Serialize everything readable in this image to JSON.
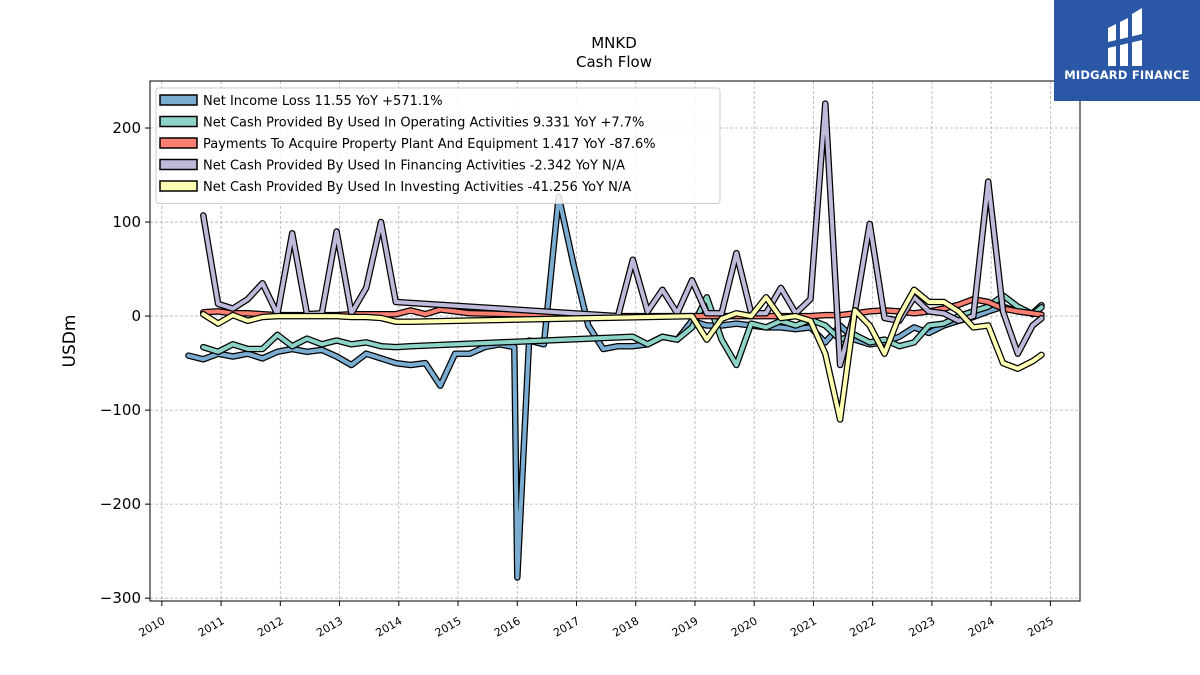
{
  "brand": {
    "name": "MIDGARD FINANCE",
    "bg": "#2b57a7"
  },
  "chart_data": {
    "type": "line",
    "title": "MNKD",
    "subtitle": "Cash Flow",
    "ylabel": "USDm",
    "xlabel": "",
    "xlim": [
      2009.8,
      2025.5
    ],
    "ylim": [
      -303,
      250
    ],
    "x_ticks": [
      2010,
      2011,
      2012,
      2013,
      2014,
      2015,
      2016,
      2017,
      2018,
      2019,
      2020,
      2021,
      2022,
      2023,
      2024,
      2025
    ],
    "y_ticks": [
      -300,
      -200,
      -100,
      0,
      100,
      200
    ],
    "y_tick_labels": [
      "−300",
      "−200",
      "−100",
      "0",
      "100",
      "200"
    ],
    "grid": true,
    "legend_position": "upper-left",
    "series": [
      {
        "name": "Net Income Loss  11.55 YoY +571.1%",
        "color": "#7aadd1",
        "points": [
          [
            2010.45,
            -42
          ],
          [
            2010.7,
            -46
          ],
          [
            2010.95,
            -40
          ],
          [
            2011.2,
            -43
          ],
          [
            2011.45,
            -40
          ],
          [
            2011.7,
            -45
          ],
          [
            2011.95,
            -38
          ],
          [
            2012.2,
            -35
          ],
          [
            2012.45,
            -38
          ],
          [
            2012.7,
            -36
          ],
          [
            2012.95,
            -43
          ],
          [
            2013.2,
            -52
          ],
          [
            2013.45,
            -40
          ],
          [
            2013.7,
            -45
          ],
          [
            2013.95,
            -50
          ],
          [
            2014.2,
            -52
          ],
          [
            2014.45,
            -50
          ],
          [
            2014.7,
            -74
          ],
          [
            2014.95,
            -40
          ],
          [
            2015.2,
            -40
          ],
          [
            2015.45,
            -33
          ],
          [
            2015.7,
            -30
          ],
          [
            2015.95,
            -33
          ],
          [
            2016.0,
            -278
          ],
          [
            2016.2,
            -26
          ],
          [
            2016.45,
            -30
          ],
          [
            2016.7,
            127
          ],
          [
            2016.95,
            55
          ],
          [
            2017.2,
            -10
          ],
          [
            2017.45,
            -35
          ],
          [
            2017.7,
            -32
          ],
          [
            2017.95,
            -32
          ],
          [
            2018.2,
            -30
          ],
          [
            2018.45,
            -22
          ],
          [
            2018.7,
            -25
          ],
          [
            2018.95,
            -5
          ],
          [
            2019.2,
            -10
          ],
          [
            2019.45,
            -10
          ],
          [
            2019.7,
            -8
          ],
          [
            2019.95,
            -10
          ],
          [
            2020.2,
            -12
          ],
          [
            2020.45,
            -12
          ],
          [
            2020.7,
            -14
          ],
          [
            2020.95,
            -12
          ],
          [
            2021.2,
            -28
          ],
          [
            2021.45,
            -10
          ],
          [
            2021.7,
            -25
          ],
          [
            2021.95,
            -30
          ],
          [
            2022.2,
            -28
          ],
          [
            2022.45,
            -22
          ],
          [
            2022.7,
            -12
          ],
          [
            2022.95,
            -18
          ],
          [
            2023.2,
            -10
          ],
          [
            2023.45,
            -5
          ],
          [
            2023.7,
            -1
          ],
          [
            2023.95,
            5
          ],
          [
            2024.2,
            10
          ],
          [
            2024.45,
            5
          ],
          [
            2024.7,
            3
          ],
          [
            2024.85,
            11.55
          ]
        ]
      },
      {
        "name": "Net Cash Provided By Used In Operating Activities  9.331 YoY +7.7%",
        "color": "#8dd3c7",
        "points": [
          [
            2010.7,
            -33
          ],
          [
            2010.95,
            -38
          ],
          [
            2011.2,
            -30
          ],
          [
            2011.45,
            -35
          ],
          [
            2011.7,
            -35
          ],
          [
            2011.95,
            -20
          ],
          [
            2012.2,
            -32
          ],
          [
            2012.45,
            -24
          ],
          [
            2012.7,
            -30
          ],
          [
            2012.95,
            -26
          ],
          [
            2013.2,
            -30
          ],
          [
            2013.45,
            -28
          ],
          [
            2013.7,
            -32
          ],
          [
            2013.95,
            -33
          ],
          [
            2014.2,
            -32
          ],
          [
            2017.95,
            -22
          ],
          [
            2018.2,
            -30
          ],
          [
            2018.45,
            -22
          ],
          [
            2018.7,
            -25
          ],
          [
            2018.95,
            -12
          ],
          [
            2019.2,
            20
          ],
          [
            2019.45,
            -25
          ],
          [
            2019.7,
            -52
          ],
          [
            2019.95,
            -8
          ],
          [
            2020.2,
            -12
          ],
          [
            2020.45,
            -5
          ],
          [
            2020.7,
            -10
          ],
          [
            2020.95,
            -4
          ],
          [
            2021.2,
            -10
          ],
          [
            2021.45,
            -25
          ],
          [
            2021.7,
            -20
          ],
          [
            2021.95,
            -28
          ],
          [
            2022.2,
            -25
          ],
          [
            2022.45,
            -32
          ],
          [
            2022.7,
            -28
          ],
          [
            2022.95,
            -10
          ],
          [
            2023.2,
            -8
          ],
          [
            2023.45,
            0
          ],
          [
            2023.7,
            5
          ],
          [
            2023.95,
            10
          ],
          [
            2024.2,
            22
          ],
          [
            2024.45,
            10
          ],
          [
            2024.7,
            2
          ],
          [
            2024.85,
            9.331
          ]
        ]
      },
      {
        "name": "Payments To Acquire Property Plant And Equipment  1.417 YoY -87.6%",
        "color": "#fb8072",
        "points": [
          [
            2010.7,
            4
          ],
          [
            2010.95,
            5
          ],
          [
            2011.2,
            3
          ],
          [
            2011.45,
            3
          ],
          [
            2011.7,
            2
          ],
          [
            2011.95,
            1
          ],
          [
            2012.2,
            1
          ],
          [
            2012.45,
            1
          ],
          [
            2012.7,
            1
          ],
          [
            2012.95,
            1
          ],
          [
            2013.2,
            2
          ],
          [
            2013.45,
            2
          ],
          [
            2013.7,
            2
          ],
          [
            2013.95,
            2
          ],
          [
            2014.2,
            6
          ],
          [
            2014.45,
            2
          ],
          [
            2014.7,
            7
          ],
          [
            2014.95,
            5
          ],
          [
            2015.2,
            3
          ],
          [
            2016.95,
            1
          ],
          [
            2017.45,
            0
          ],
          [
            2018.95,
            0
          ],
          [
            2019.2,
            0
          ],
          [
            2019.45,
            0
          ],
          [
            2019.7,
            0
          ],
          [
            2019.95,
            0
          ],
          [
            2020.2,
            0
          ],
          [
            2020.45,
            0
          ],
          [
            2020.7,
            0
          ],
          [
            2020.95,
            0
          ],
          [
            2021.2,
            1
          ],
          [
            2021.45,
            1
          ],
          [
            2021.7,
            3
          ],
          [
            2021.95,
            5
          ],
          [
            2022.2,
            6
          ],
          [
            2022.45,
            5
          ],
          [
            2022.7,
            3
          ],
          [
            2022.95,
            5
          ],
          [
            2023.2,
            8
          ],
          [
            2023.45,
            12
          ],
          [
            2023.7,
            18
          ],
          [
            2023.95,
            15
          ],
          [
            2024.2,
            8
          ],
          [
            2024.45,
            5
          ],
          [
            2024.7,
            3
          ],
          [
            2024.85,
            1.417
          ]
        ]
      },
      {
        "name": "Net Cash Provided By Used In Financing Activities  -2.342 YoY N/A",
        "color": "#bebada",
        "points": [
          [
            2010.7,
            107
          ],
          [
            2010.95,
            13
          ],
          [
            2011.2,
            8
          ],
          [
            2011.45,
            18
          ],
          [
            2011.7,
            35
          ],
          [
            2011.95,
            2
          ],
          [
            2012.2,
            88
          ],
          [
            2012.45,
            2
          ],
          [
            2012.7,
            3
          ],
          [
            2012.95,
            90
          ],
          [
            2013.2,
            3
          ],
          [
            2013.45,
            30
          ],
          [
            2013.7,
            100
          ],
          [
            2013.95,
            15
          ],
          [
            2017.7,
            0
          ],
          [
            2017.95,
            60
          ],
          [
            2018.2,
            5
          ],
          [
            2018.45,
            28
          ],
          [
            2018.7,
            3
          ],
          [
            2018.95,
            38
          ],
          [
            2019.2,
            3
          ],
          [
            2019.45,
            3
          ],
          [
            2019.7,
            67
          ],
          [
            2019.95,
            3
          ],
          [
            2020.2,
            3
          ],
          [
            2020.45,
            30
          ],
          [
            2020.7,
            3
          ],
          [
            2020.95,
            18
          ],
          [
            2021.2,
            226
          ],
          [
            2021.45,
            -52
          ],
          [
            2021.7,
            5
          ],
          [
            2021.95,
            98
          ],
          [
            2022.2,
            -2
          ],
          [
            2022.45,
            -5
          ],
          [
            2022.7,
            20
          ],
          [
            2022.95,
            5
          ],
          [
            2023.2,
            3
          ],
          [
            2023.45,
            -5
          ],
          [
            2023.7,
            0
          ],
          [
            2023.95,
            143
          ],
          [
            2024.2,
            5
          ],
          [
            2024.45,
            -40
          ],
          [
            2024.7,
            -10
          ],
          [
            2024.85,
            -2.342
          ]
        ]
      },
      {
        "name": "Net Cash Provided By Used In Investing Activities  -41.256 YoY N/A",
        "color": "#ffffb3",
        "points": [
          [
            2010.7,
            2
          ],
          [
            2010.95,
            -8
          ],
          [
            2011.2,
            1
          ],
          [
            2011.45,
            -5
          ],
          [
            2011.7,
            -1
          ],
          [
            2011.95,
            0
          ],
          [
            2012.2,
            0
          ],
          [
            2012.45,
            0
          ],
          [
            2012.7,
            0
          ],
          [
            2012.95,
            0
          ],
          [
            2013.2,
            -1
          ],
          [
            2013.45,
            -1
          ],
          [
            2013.7,
            -2
          ],
          [
            2013.95,
            -6
          ],
          [
            2014.2,
            -6
          ],
          [
            2018.95,
            0
          ],
          [
            2019.2,
            -25
          ],
          [
            2019.45,
            -3
          ],
          [
            2019.7,
            3
          ],
          [
            2019.95,
            0
          ],
          [
            2020.2,
            20
          ],
          [
            2020.45,
            -2
          ],
          [
            2020.7,
            0
          ],
          [
            2020.95,
            -5
          ],
          [
            2021.2,
            -40
          ],
          [
            2021.45,
            -110
          ],
          [
            2021.7,
            6
          ],
          [
            2021.95,
            -10
          ],
          [
            2022.2,
            -40
          ],
          [
            2022.45,
            0
          ],
          [
            2022.7,
            28
          ],
          [
            2022.95,
            15
          ],
          [
            2023.2,
            15
          ],
          [
            2023.45,
            5
          ],
          [
            2023.7,
            -12
          ],
          [
            2023.95,
            -10
          ],
          [
            2024.2,
            -50
          ],
          [
            2024.45,
            -56
          ],
          [
            2024.7,
            -48
          ],
          [
            2024.85,
            -41.256
          ]
        ]
      }
    ]
  }
}
